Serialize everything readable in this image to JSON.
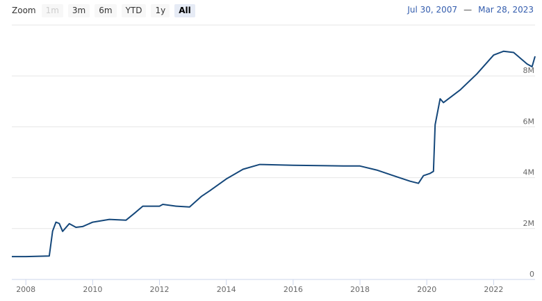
{
  "range_selector": {
    "label": "Zoom",
    "buttons": [
      "1m",
      "3m",
      "6m",
      "YTD",
      "1y",
      "All"
    ],
    "selected": "All",
    "disabled": [
      "1m"
    ],
    "from": "Jul 30, 2007",
    "separator": "—",
    "to": "Mar 28, 2023"
  },
  "chart_data": {
    "type": "line",
    "x": [
      2007.58,
      2008.0,
      2008.7,
      2008.8,
      2008.9,
      2009.0,
      2009.1,
      2009.3,
      2009.5,
      2009.7,
      2010.0,
      2010.5,
      2011.0,
      2011.25,
      2011.5,
      2012.0,
      2012.1,
      2012.5,
      2012.9,
      2013.25,
      2013.5,
      2014.0,
      2014.5,
      2015.0,
      2016.0,
      2017.0,
      2017.5,
      2018.0,
      2018.5,
      2019.0,
      2019.5,
      2019.75,
      2019.9,
      2020.1,
      2020.2,
      2020.25,
      2020.4,
      2020.5,
      2021.0,
      2021.5,
      2022.0,
      2022.3,
      2022.6,
      2023.0,
      2023.15,
      2023.24
    ],
    "series": [
      {
        "color": "#14477a",
        "values": [
          900000,
          900000,
          920000,
          1900000,
          2250000,
          2200000,
          1890000,
          2190000,
          2050000,
          2080000,
          2250000,
          2360000,
          2330000,
          2600000,
          2880000,
          2880000,
          2950000,
          2880000,
          2850000,
          3260000,
          3480000,
          3950000,
          4330000,
          4520000,
          4490000,
          4470000,
          4460000,
          4460000,
          4300000,
          4080000,
          3860000,
          3780000,
          4080000,
          4170000,
          4250000,
          6080000,
          7100000,
          6950000,
          7450000,
          8080000,
          8820000,
          8970000,
          8920000,
          8470000,
          8360000,
          8770000
        ]
      }
    ],
    "xlim": [
      2007.58,
      2023.24
    ],
    "xticks": [
      2008,
      2010,
      2012,
      2014,
      2016,
      2018,
      2020,
      2022
    ],
    "ylim": [
      0,
      10000000
    ],
    "yticks": [
      0,
      {
        "value": 2000000,
        "label": "2M"
      },
      {
        "value": 4000000,
        "label": "4M"
      },
      {
        "value": 6000000,
        "label": "6M"
      },
      {
        "value": 8000000,
        "label": "8M"
      }
    ],
    "grid": true
  }
}
